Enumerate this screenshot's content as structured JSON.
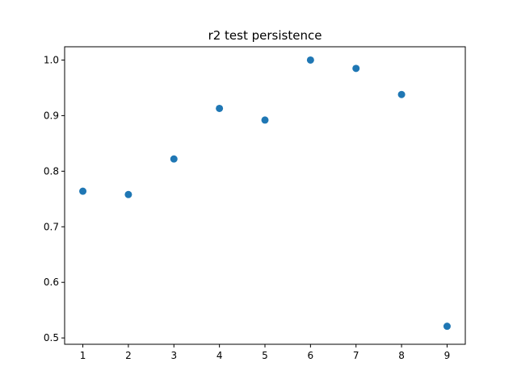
{
  "chart_data": {
    "type": "scatter",
    "title": "r2 test persistence",
    "xlabel": "",
    "ylabel": "",
    "x": [
      1,
      2,
      3,
      4,
      5,
      6,
      7,
      8,
      9
    ],
    "y": [
      0.764,
      0.758,
      0.822,
      0.913,
      0.892,
      1.0,
      0.985,
      0.938,
      0.521
    ],
    "xlim": [
      0.6,
      9.4
    ],
    "ylim": [
      0.4886,
      1.0239
    ],
    "xticks": [
      1,
      2,
      3,
      4,
      5,
      6,
      7,
      8,
      9
    ],
    "yticks": [
      0.5,
      0.6,
      0.7,
      0.8,
      0.9,
      1.0
    ],
    "ytick_labels": [
      "0.5",
      "0.6",
      "0.7",
      "0.8",
      "0.9",
      "1.0"
    ],
    "xtick_labels": [
      "1",
      "2",
      "3",
      "4",
      "5",
      "6",
      "7",
      "8",
      "9"
    ],
    "grid": false,
    "marker_color": "#1f77b4"
  }
}
